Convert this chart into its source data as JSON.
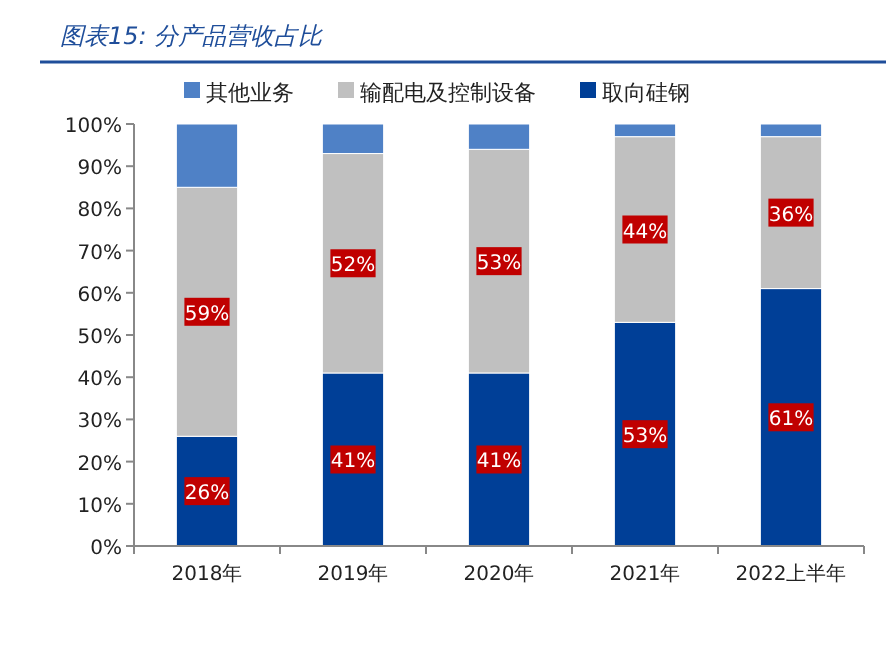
{
  "chart_data": {
    "type": "bar",
    "title": "图表15: 分产品营收占比",
    "stacked": true,
    "legend": "top",
    "grid": false,
    "categories": [
      "2018年",
      "2019年",
      "2020年",
      "2021年",
      "2022上半年"
    ],
    "series": [
      {
        "name": "取向硅钢",
        "color": "#003f97",
        "values": [
          26,
          41,
          41,
          53,
          61
        ],
        "value_labels": [
          "26%",
          "41%",
          "41%",
          "53%",
          "61%"
        ]
      },
      {
        "name": "输配电及控制设备",
        "color": "#c0c0c0",
        "values": [
          59,
          52,
          53,
          44,
          36
        ],
        "value_labels": [
          "59%",
          "52%",
          "53%",
          "44%",
          "36%"
        ]
      },
      {
        "name": "其他业务",
        "color": "#4f81c6",
        "values": [
          15,
          7,
          6,
          3,
          3
        ]
      }
    ],
    "ylim": [
      0,
      100
    ],
    "yticks": [
      {
        "value": 0,
        "label": "0%"
      },
      {
        "value": 10,
        "label": "10%"
      },
      {
        "value": 20,
        "label": "20%"
      },
      {
        "value": 30,
        "label": "30%"
      },
      {
        "value": 40,
        "label": "40%"
      },
      {
        "value": 50,
        "label": "50%"
      },
      {
        "value": 60,
        "label": "60%"
      },
      {
        "value": 70,
        "label": "70%"
      },
      {
        "value": 80,
        "label": "80%"
      },
      {
        "value": 90,
        "label": "90%"
      },
      {
        "value": 100,
        "label": "100%"
      }
    ]
  }
}
